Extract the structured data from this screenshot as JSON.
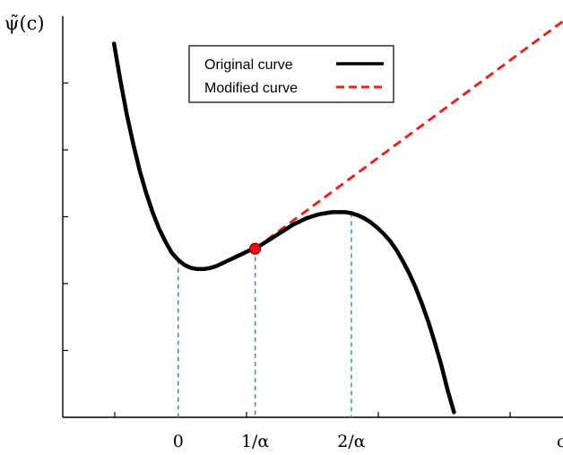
{
  "chart_data": {
    "type": "line",
    "ylabel": "ψ̃(c)",
    "xlabel": "c",
    "xlim": [
      -1.0,
      2.9
    ],
    "ylim": [
      -1.35,
      2.6
    ],
    "x_ticks_labeled": [
      {
        "x": -0.1,
        "label": "0"
      },
      {
        "x": 0.5,
        "label": "1/α"
      },
      {
        "x": 1.25,
        "label": "2/α"
      }
    ],
    "reference_lines": [
      {
        "x": -0.1,
        "style": "dashed",
        "color": "#2a8fd0"
      },
      {
        "x": 0.5,
        "style": "dashed",
        "color": "#2a8fd0"
      },
      {
        "x": 1.25,
        "style": "dashed",
        "color": "#2a8fd0"
      }
    ],
    "marker": {
      "x": 0.5,
      "y": 0.31,
      "color": "#ee1111"
    },
    "series": [
      {
        "name": "Original curve",
        "color": "#000000",
        "style": "solid",
        "points": [
          [
            -0.6,
            2.33
          ],
          [
            -0.55,
            1.96
          ],
          [
            -0.5,
            1.63
          ],
          [
            -0.45,
            1.34
          ],
          [
            -0.4,
            1.08
          ],
          [
            -0.35,
            0.86
          ],
          [
            -0.3,
            0.67
          ],
          [
            -0.25,
            0.51
          ],
          [
            -0.2,
            0.38
          ],
          [
            -0.15,
            0.27
          ],
          [
            -0.1,
            0.2
          ],
          [
            -0.05,
            0.15
          ],
          [
            0.0,
            0.12
          ],
          [
            0.05,
            0.11
          ],
          [
            0.1,
            0.11
          ],
          [
            0.15,
            0.12
          ],
          [
            0.2,
            0.14
          ],
          [
            0.25,
            0.17
          ],
          [
            0.3,
            0.2
          ],
          [
            0.35,
            0.23
          ],
          [
            0.4,
            0.26
          ],
          [
            0.45,
            0.29
          ],
          [
            0.5,
            0.31
          ],
          [
            0.55,
            0.35
          ],
          [
            0.6,
            0.39
          ],
          [
            0.65,
            0.43
          ],
          [
            0.7,
            0.47
          ],
          [
            0.75,
            0.51
          ],
          [
            0.8,
            0.55
          ],
          [
            0.85,
            0.58
          ],
          [
            0.9,
            0.61
          ],
          [
            0.95,
            0.63
          ],
          [
            1.0,
            0.65
          ],
          [
            1.05,
            0.66
          ],
          [
            1.1,
            0.67
          ],
          [
            1.15,
            0.67
          ],
          [
            1.2,
            0.67
          ],
          [
            1.25,
            0.66
          ],
          [
            1.3,
            0.64
          ],
          [
            1.35,
            0.61
          ],
          [
            1.4,
            0.57
          ],
          [
            1.45,
            0.52
          ],
          [
            1.5,
            0.46
          ],
          [
            1.55,
            0.39
          ],
          [
            1.6,
            0.3
          ],
          [
            1.65,
            0.19
          ],
          [
            1.7,
            0.07
          ],
          [
            1.75,
            -0.07
          ],
          [
            1.8,
            -0.23
          ],
          [
            1.85,
            -0.41
          ],
          [
            1.9,
            -0.61
          ],
          [
            1.95,
            -0.83
          ],
          [
            2.0,
            -1.08
          ],
          [
            2.05,
            -1.3
          ]
        ]
      },
      {
        "name": "Modified curve",
        "color": "#e8221e",
        "style": "dashed",
        "points": [
          [
            0.5,
            0.31
          ],
          [
            2.9,
            2.55
          ]
        ]
      }
    ],
    "legend": {
      "placement": "top-center"
    }
  }
}
